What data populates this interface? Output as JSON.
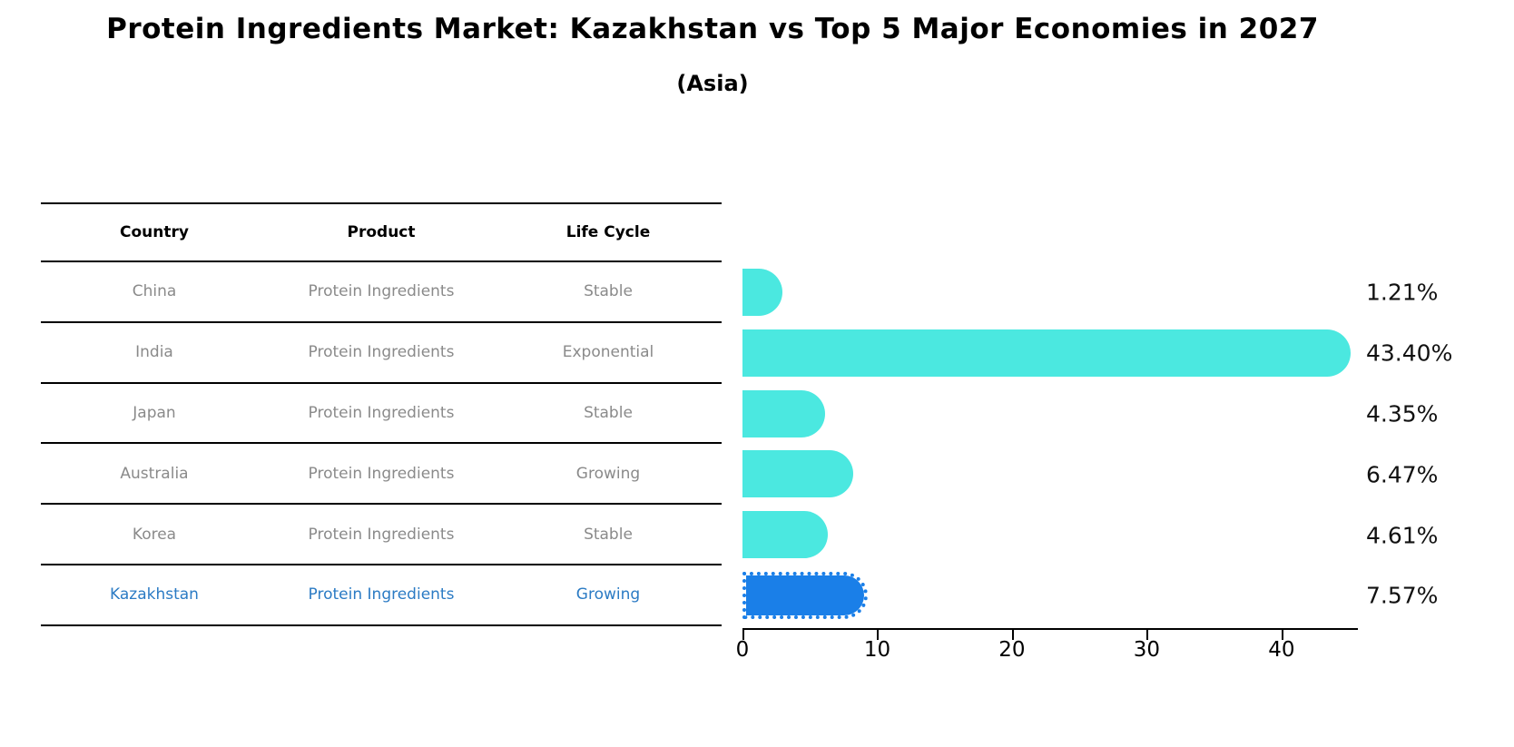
{
  "title": "Protein Ingredients Market: Kazakhstan vs Top 5 Major Economies in 2027",
  "subtitle": "(Asia)",
  "table": {
    "columns": [
      "Country",
      "Product",
      "Life Cycle"
    ],
    "rows": [
      {
        "country": "China",
        "product": "Protein Ingredients",
        "life_cycle": "Stable",
        "highlighted": false
      },
      {
        "country": "India",
        "product": "Protein Ingredients",
        "life_cycle": "Exponential",
        "highlighted": false
      },
      {
        "country": "Japan",
        "product": "Protein Ingredients",
        "life_cycle": "Stable",
        "highlighted": false
      },
      {
        "country": "Australia",
        "product": "Protein Ingredients",
        "life_cycle": "Growing",
        "highlighted": false
      },
      {
        "country": "Korea",
        "product": "Protein Ingredients",
        "life_cycle": "Stable",
        "highlighted": false
      },
      {
        "country": "Kazakhstan",
        "product": "Protein Ingredients",
        "life_cycle": "Growing",
        "highlighted": true
      }
    ]
  },
  "chart_data": {
    "type": "bar",
    "orientation": "horizontal",
    "title": "Protein Ingredients Market: Kazakhstan vs Top 5 Major Economies in 2027",
    "subtitle": "(Asia)",
    "categories": [
      "China",
      "India",
      "Japan",
      "Australia",
      "Korea",
      "Kazakhstan"
    ],
    "values": [
      1.21,
      43.4,
      4.35,
      6.47,
      4.61,
      7.57
    ],
    "value_labels": [
      "1.21%",
      "43.40%",
      "4.35%",
      "6.47%",
      "4.61%",
      "7.57%"
    ],
    "x_ticks": [
      0,
      10,
      20,
      30,
      40
    ],
    "xlim": [
      0,
      45.6
    ],
    "grid": false,
    "legend": null,
    "highlight_index": 5,
    "bar_color": "#4be8e0",
    "highlight_bar_color": "#1a7fe8",
    "highlight_text_color": "#2b7bc4",
    "value_label_color": "#111111",
    "axis_color": "#000000"
  },
  "colors": {
    "background": "#ffffff",
    "title_text": "#000000",
    "table_line": "#000000",
    "table_header_text": "#000000",
    "table_row_text": "#8a8a8a",
    "bar_cyan": "#4be8e0",
    "bar_blue": "#1a7fe8"
  }
}
